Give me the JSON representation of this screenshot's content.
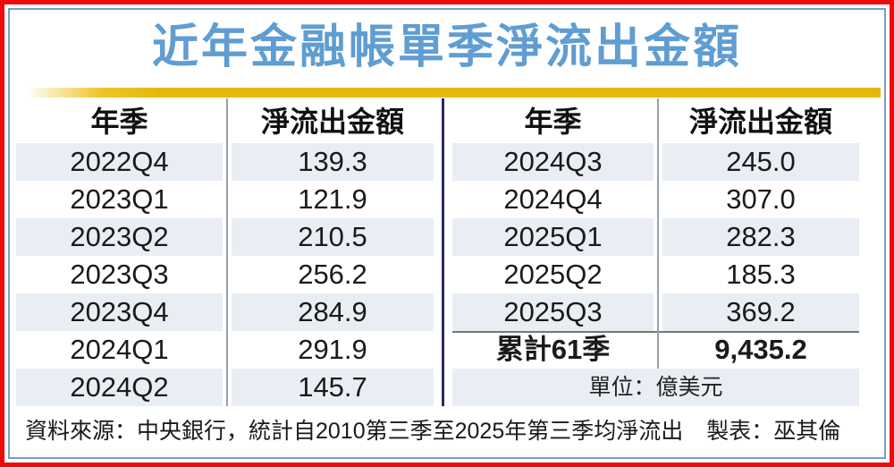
{
  "title": "近年金融帳單季淨流出金額",
  "tables": {
    "left": {
      "headers": {
        "quarter": "年季",
        "amount": "淨流出金額"
      },
      "rows": [
        {
          "q": "2022Q4",
          "v": "139.3"
        },
        {
          "q": "2023Q1",
          "v": "121.9"
        },
        {
          "q": "2023Q2",
          "v": "210.5"
        },
        {
          "q": "2023Q3",
          "v": "256.2"
        },
        {
          "q": "2023Q4",
          "v": "284.9"
        },
        {
          "q": "2024Q1",
          "v": "291.9"
        },
        {
          "q": "2024Q2",
          "v": "145.7"
        }
      ]
    },
    "right": {
      "headers": {
        "quarter": "年季",
        "amount": "淨流出金額"
      },
      "rows": [
        {
          "q": "2024Q3",
          "v": "245.0"
        },
        {
          "q": "2024Q4",
          "v": "307.0"
        },
        {
          "q": "2025Q1",
          "v": "282.3"
        },
        {
          "q": "2025Q2",
          "v": "185.3"
        },
        {
          "q": "2025Q3",
          "v": "369.2"
        }
      ],
      "total": {
        "label": "累計61季",
        "value": "9,435.2"
      },
      "unit_note": "單位：億美元"
    }
  },
  "footer": {
    "source": "資料來源：中央銀行，統計自2010第三季至2025年第三季均淨流出",
    "credit": "製表：巫其倫"
  },
  "colors": {
    "frame_red": "#ee0a0a",
    "frame_blue": "#7a9cc4",
    "title_blue": "#5f9dd2",
    "gold_bar": "#e6b80e",
    "row_shade": "#e9eef4",
    "navy_divider": "#27276d",
    "column_divider": "#98a0a8"
  },
  "chart_data": {
    "type": "table",
    "title": "近年金融帳單季淨流出金額",
    "columns": [
      "年季",
      "淨流出金額"
    ],
    "rows": [
      [
        "2022Q4",
        139.3
      ],
      [
        "2023Q1",
        121.9
      ],
      [
        "2023Q2",
        210.5
      ],
      [
        "2023Q3",
        256.2
      ],
      [
        "2023Q4",
        284.9
      ],
      [
        "2024Q1",
        291.9
      ],
      [
        "2024Q2",
        145.7
      ],
      [
        "2024Q3",
        245.0
      ],
      [
        "2024Q4",
        307.0
      ],
      [
        "2025Q1",
        282.3
      ],
      [
        "2025Q2",
        185.3
      ],
      [
        "2025Q3",
        369.2
      ]
    ],
    "total": {
      "label": "累計61季",
      "value": 9435.2
    },
    "unit": "億美元",
    "source": "中央銀行",
    "note": "統計自2010第三季至2025年第三季均淨流出"
  }
}
